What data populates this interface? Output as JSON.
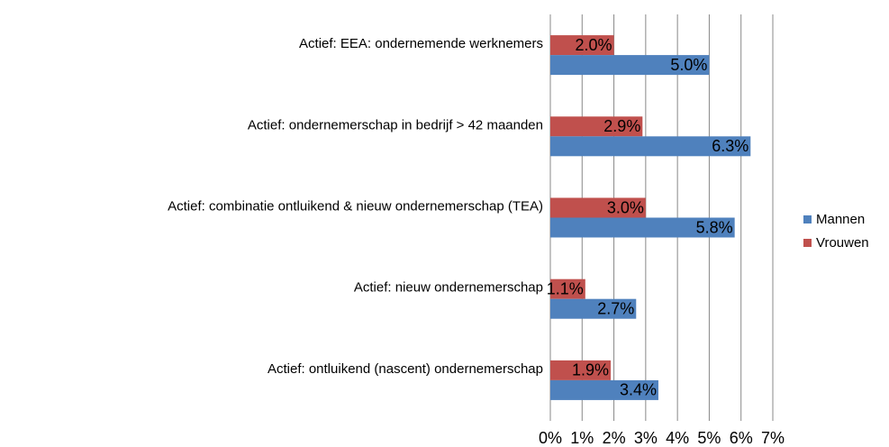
{
  "chart_data": {
    "type": "bar",
    "orientation": "horizontal",
    "categories": [
      "Actief: EEA: ondernemende werknemers",
      "Actief: ondernemerschap in bedrijf > 42 maanden",
      "Actief: combinatie ontluikend & nieuw ondernemerschap (TEA)",
      "Actief: nieuw ondernemerschap",
      "Actief: ontluikend (nascent) ondernemerschap"
    ],
    "series": [
      {
        "name": "Mannen",
        "color": "#4f81bd",
        "values": [
          5.0,
          6.3,
          5.8,
          2.7,
          3.4
        ],
        "value_labels": [
          "5.0%",
          "6.3%",
          "5.8%",
          "2.7%",
          "3.4%"
        ]
      },
      {
        "name": "Vrouwen",
        "color": "#c0504d",
        "values": [
          2.0,
          2.9,
          3.0,
          1.1,
          1.9
        ],
        "value_labels": [
          "2.0%",
          "2.9%",
          "3.0%",
          "1.1%",
          "1.9%"
        ]
      }
    ],
    "xlim": [
      0,
      7
    ],
    "xticks": [
      {
        "value": 0,
        "label": "0%"
      },
      {
        "value": 1,
        "label": "1%"
      },
      {
        "value": 2,
        "label": "2%"
      },
      {
        "value": 3,
        "label": "3%"
      },
      {
        "value": 4,
        "label": "4%"
      },
      {
        "value": 5,
        "label": "5%"
      },
      {
        "value": 6,
        "label": "6%"
      },
      {
        "value": 7,
        "label": "7%"
      }
    ],
    "grid": true,
    "legend": "right"
  }
}
